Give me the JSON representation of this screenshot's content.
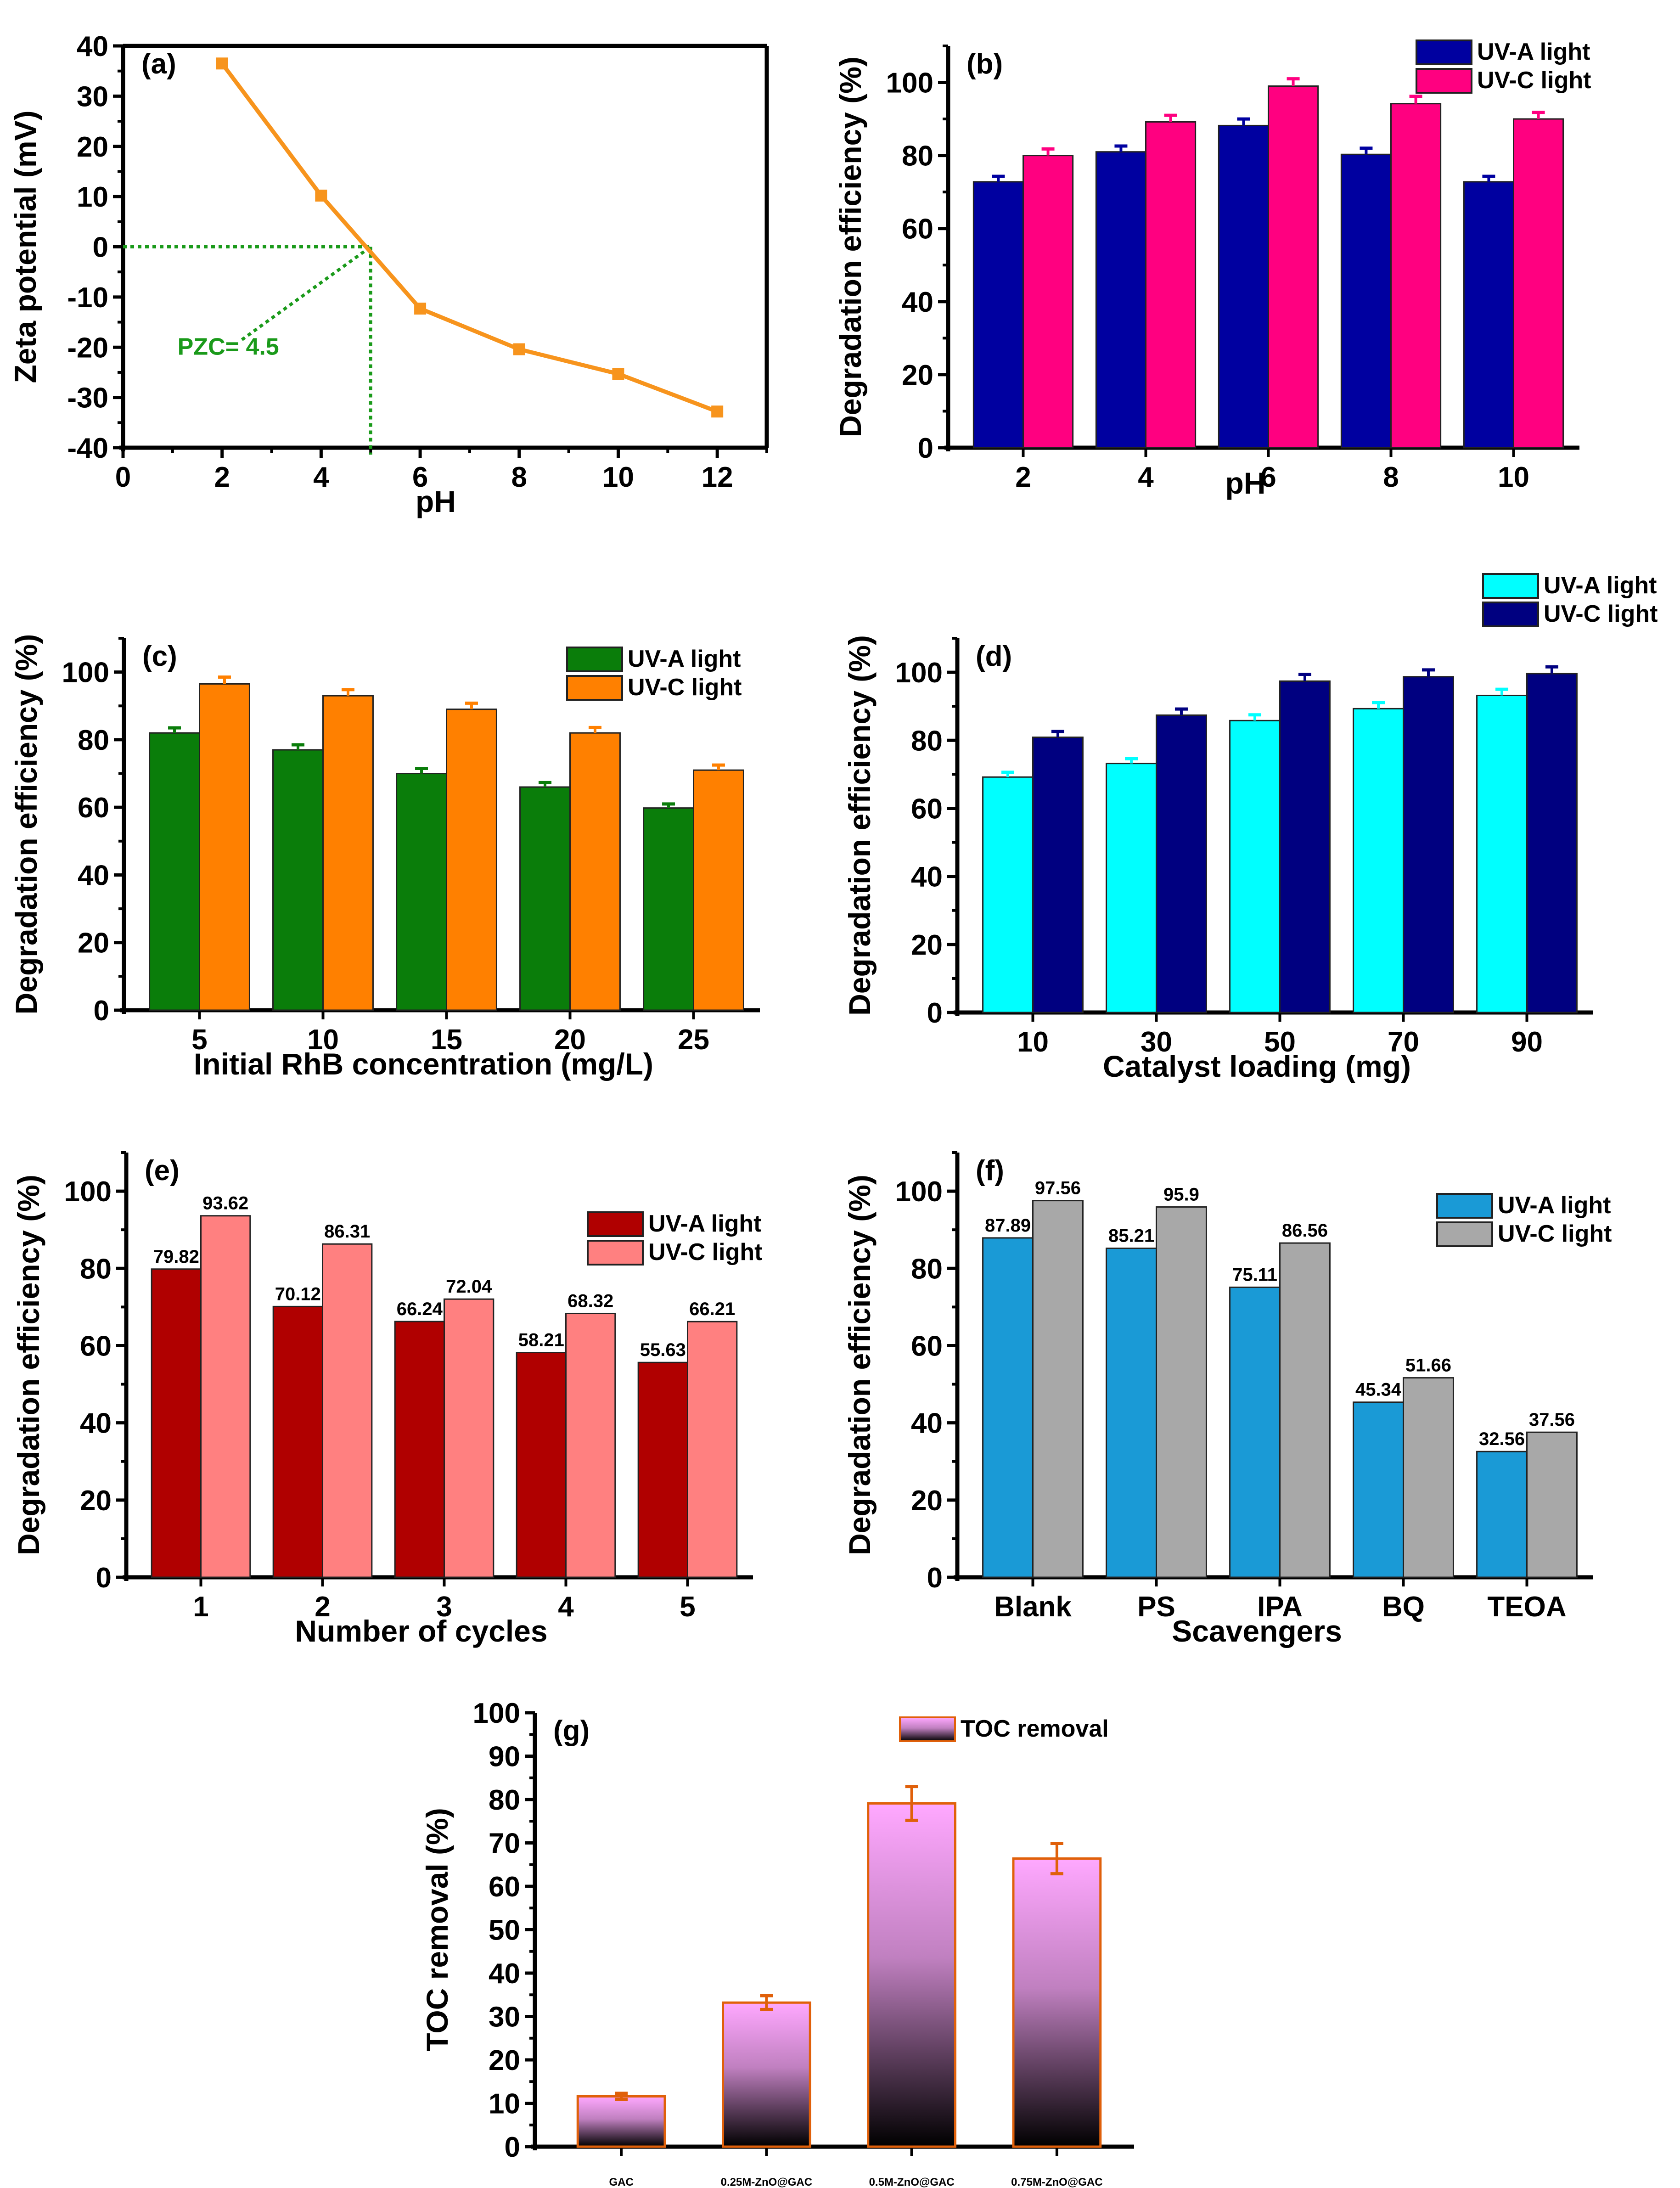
{
  "chart_data": [
    {
      "id": "a",
      "type": "line",
      "panel_label": "(a)",
      "xlabel": "pH",
      "ylabel": "Zeta potential (mV)",
      "xlim": [
        0,
        13
      ],
      "ylim": [
        -40,
        40
      ],
      "xticks": [
        0,
        2,
        4,
        6,
        8,
        10,
        12
      ],
      "yticks": [
        -40,
        -30,
        -20,
        -10,
        0,
        10,
        20,
        30,
        40
      ],
      "x": [
        2,
        4,
        6,
        8,
        10,
        12
      ],
      "series": [
        {
          "name": "Zeta potential",
          "values": [
            36.5,
            10.2,
            -12.3,
            -20.4,
            -25.3,
            -32.8
          ],
          "color": "#f7941d"
        }
      ],
      "annotation": {
        "text": "PZC= 4.5",
        "color": "#1a9a1a",
        "crossing_x": 5,
        "crossing_y": 0
      },
      "grid": false
    },
    {
      "id": "b",
      "type": "bar",
      "panel_label": "(b)",
      "xlabel": "pH",
      "ylabel": "Degradation efficiency (%)",
      "ylim": [
        0,
        110
      ],
      "yticks": [
        0,
        20,
        40,
        60,
        80,
        100
      ],
      "categories": [
        "2",
        "4",
        "6",
        "8",
        "10"
      ],
      "series": [
        {
          "name": "UV-A light",
          "values": [
            72.8,
            81.0,
            88.2,
            80.3,
            72.8
          ],
          "errors": [
            1.5,
            1.6,
            1.8,
            1.7,
            1.5
          ],
          "color": "#0000a0"
        },
        {
          "name": "UV-C light",
          "values": [
            80.0,
            89.2,
            99.0,
            94.2,
            90.0
          ],
          "errors": [
            1.8,
            1.8,
            2.0,
            2.0,
            1.8
          ],
          "color": "#ff0080"
        }
      ],
      "legend": "top-right",
      "grid": false
    },
    {
      "id": "c",
      "type": "bar",
      "panel_label": "(c)",
      "xlabel": "Initial RhB concentration (mg/L)",
      "ylabel": "Degradation efficiency (%)",
      "ylim": [
        0,
        110
      ],
      "yticks": [
        0,
        20,
        40,
        60,
        80,
        100
      ],
      "categories": [
        "5",
        "10",
        "15",
        "20",
        "25"
      ],
      "series": [
        {
          "name": "UV-A light",
          "values": [
            82.0,
            77.0,
            70.0,
            66.0,
            59.8
          ],
          "errors": [
            1.5,
            1.5,
            1.5,
            1.3,
            1.2
          ],
          "color": "#0a7d0a"
        },
        {
          "name": "UV-C light",
          "values": [
            96.5,
            93.0,
            89.0,
            82.0,
            71.0
          ],
          "errors": [
            2.0,
            1.8,
            1.8,
            1.6,
            1.5
          ],
          "color": "#ff8000"
        }
      ],
      "legend": "top-right",
      "grid": false
    },
    {
      "id": "d",
      "type": "bar",
      "panel_label": "(d)",
      "xlabel": "Catalyst loading (mg)",
      "ylabel": "Degradation efficiency (%)",
      "ylim": [
        0,
        110
      ],
      "yticks": [
        0,
        20,
        40,
        60,
        80,
        100
      ],
      "categories": [
        "10",
        "30",
        "50",
        "70",
        "90"
      ],
      "series": [
        {
          "name": "UV-A light",
          "values": [
            69.2,
            73.2,
            85.8,
            89.3,
            93.2
          ],
          "errors": [
            1.4,
            1.4,
            1.7,
            1.8,
            1.8
          ],
          "color": "#00ffff"
        },
        {
          "name": "UV-C light",
          "values": [
            80.9,
            87.4,
            97.4,
            98.7,
            99.6
          ],
          "errors": [
            1.7,
            1.8,
            2.0,
            2.0,
            2.0
          ],
          "color": "#000080"
        }
      ],
      "legend": "top-right",
      "grid": false
    },
    {
      "id": "e",
      "type": "bar",
      "panel_label": "(e)",
      "xlabel": "Number of cycles",
      "ylabel": "Degradation efficiency (%)",
      "ylim": [
        0,
        110
      ],
      "yticks": [
        0,
        20,
        40,
        60,
        80,
        100
      ],
      "categories": [
        "1",
        "2",
        "3",
        "4",
        "5"
      ],
      "series": [
        {
          "name": "UV-A light",
          "values": [
            79.82,
            70.12,
            66.24,
            58.21,
            55.63
          ],
          "labels": [
            "79.82",
            "70.12",
            "66.24",
            "58.21",
            "55.63"
          ],
          "color": "#b00000"
        },
        {
          "name": "UV-C light",
          "values": [
            93.62,
            86.31,
            72.04,
            68.32,
            66.21
          ],
          "labels": [
            "93.62",
            "86.31",
            "72.04",
            "68.32",
            "66.21"
          ],
          "color": "#ff8080"
        }
      ],
      "legend": "top-right",
      "grid": false
    },
    {
      "id": "f",
      "type": "bar",
      "panel_label": "(f)",
      "xlabel": "Scavengers",
      "ylabel": "Degradation efficiency (%)",
      "ylim": [
        0,
        110
      ],
      "yticks": [
        0,
        20,
        40,
        60,
        80,
        100
      ],
      "categories": [
        "Blank",
        "PS",
        "IPA",
        "BQ",
        "TEOA"
      ],
      "series": [
        {
          "name": "UV-A light",
          "values": [
            87.89,
            85.21,
            75.11,
            45.34,
            32.56
          ],
          "labels": [
            "87.89",
            "85.21",
            "75.11",
            "45.34",
            "32.56"
          ],
          "color": "#1a9ad6"
        },
        {
          "name": "UV-C light",
          "values": [
            97.56,
            95.9,
            86.56,
            51.66,
            37.56
          ],
          "labels": [
            "97.56",
            "95.9",
            "86.56",
            "51.66",
            "37.56"
          ],
          "color": "#a8a8a8"
        }
      ],
      "legend": "top-right",
      "grid": false
    },
    {
      "id": "g",
      "type": "bar",
      "panel_label": "(g)",
      "xlabel": "",
      "ylabel": "TOC removal (%)",
      "ylim": [
        0,
        100
      ],
      "yticks": [
        0,
        10,
        20,
        30,
        40,
        50,
        60,
        70,
        80,
        90,
        100
      ],
      "categories": [
        "GAC",
        "0.25M-ZnO@GAC",
        "0.5M-ZnO@GAC",
        "0.75M-ZnO@GAC"
      ],
      "series": [
        {
          "name": "TOC removal",
          "values": [
            11.6,
            33.2,
            79.1,
            66.4
          ],
          "errors": [
            0.7,
            1.6,
            3.9,
            3.5
          ],
          "color": "#ffa8ff",
          "color_bottom": "#000000",
          "edge_color": "#e0600a"
        }
      ],
      "legend": "top-right",
      "grid": false
    }
  ]
}
